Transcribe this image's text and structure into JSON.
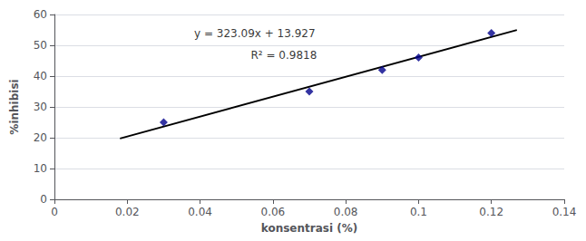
{
  "chart_data": {
    "type": "scatter",
    "xlabel": "konsentrasi (%)",
    "ylabel": "%inhibisi",
    "series": [
      {
        "type": "scatter",
        "color": "#00008B",
        "marker": "diamond",
        "x": [
          0.03,
          0.07,
          0.09,
          0.1,
          0.12
        ],
        "values": [
          25,
          35,
          42,
          46,
          54
        ]
      },
      {
        "type": "line",
        "color": "#000000",
        "line_style": "solid",
        "x": [
          0.018,
          0.127
        ],
        "values": [
          19.74262,
          54.95943
        ]
      }
    ],
    "annotations": [
      {
        "text": "y = 323.09x + 13.927",
        "x": 0.055,
        "y": 52
      },
      {
        "text": "R² = 0.9818",
        "x": 0.063,
        "y": 45
      }
    ],
    "xlim": [
      0,
      0.14
    ],
    "ylim": [
      0,
      60
    ],
    "xticks": [
      0,
      0.02,
      0.04,
      0.06,
      0.08,
      0.1,
      0.12,
      0.14
    ],
    "yticks": [
      0,
      10,
      20,
      30,
      40,
      50,
      60
    ],
    "grid": "y"
  }
}
